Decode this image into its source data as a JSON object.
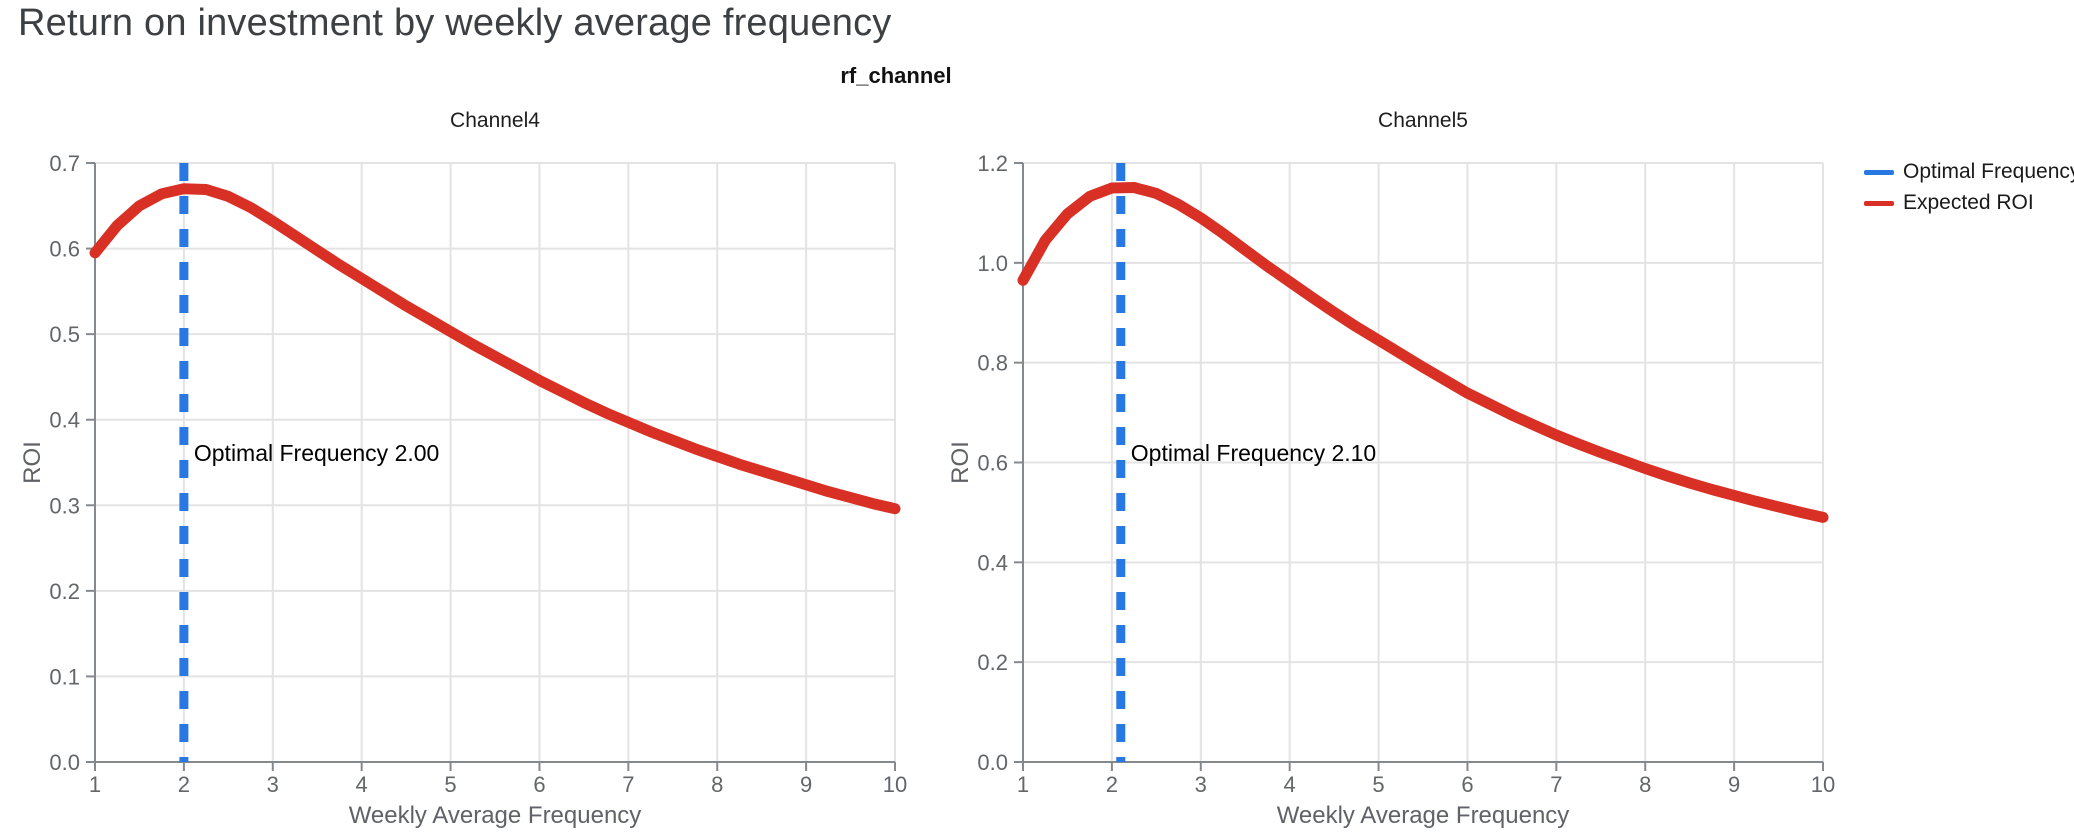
{
  "page": {
    "title": "Return on investment by weekly average frequency"
  },
  "figure": {
    "suptitle": "rf_channel"
  },
  "legend": {
    "position": "top-right",
    "items": [
      {
        "label": "Optimal Frequency",
        "color": "#2878e4"
      },
      {
        "label": "Expected ROI",
        "color": "#d93025"
      }
    ]
  },
  "colors": {
    "curve_red": "#d93025",
    "optimal_blue": "#2878e4",
    "gridline": "#e3e3e3",
    "axis_line": "#84898e",
    "tick_label": "#636669",
    "axis_title": "#5f6368",
    "chart_title": "#1d1d1f",
    "page_title": "#3c4043",
    "annotation_text": "#000000"
  },
  "chart_data": [
    {
      "type": "line",
      "title": "Channel4",
      "xlabel": "Weekly Average Frequency",
      "ylabel": "ROI",
      "xlim": [
        1,
        10
      ],
      "ylim": [
        0,
        0.7
      ],
      "grid": true,
      "xtick_values": [
        1,
        2,
        3,
        4,
        5,
        6,
        7,
        8,
        9,
        10
      ],
      "xtick_labels": [
        "1",
        "2",
        "3",
        "4",
        "5",
        "6",
        "7",
        "8",
        "9",
        "10"
      ],
      "ytick_values": [
        0.0,
        0.1,
        0.2,
        0.3,
        0.4,
        0.5,
        0.6,
        0.7
      ],
      "ytick_labels": [
        "0.0",
        "0.1",
        "0.2",
        "0.3",
        "0.4",
        "0.5",
        "0.6",
        "0.7"
      ],
      "optimal_frequency": 2.0,
      "annotation": {
        "label": "Optimal Frequency",
        "value": "2.00",
        "text": "Optimal Frequency  2.00"
      },
      "series": [
        {
          "name": "Expected ROI",
          "color": "#d93025",
          "x": [
            1,
            1.25,
            1.5,
            1.75,
            2,
            2.25,
            2.5,
            2.75,
            3,
            3.25,
            3.5,
            3.75,
            4,
            4.25,
            4.5,
            4.75,
            5,
            5.25,
            5.5,
            5.75,
            6,
            6.25,
            6.5,
            6.75,
            7,
            7.25,
            7.5,
            7.75,
            8,
            8.25,
            8.5,
            8.75,
            9,
            9.25,
            9.5,
            9.75,
            10
          ],
          "y": [
            0.595,
            0.627,
            0.65,
            0.664,
            0.67,
            0.669,
            0.661,
            0.648,
            0.632,
            0.615,
            0.598,
            0.581,
            0.565,
            0.549,
            0.533,
            0.518,
            0.503,
            0.488,
            0.474,
            0.46,
            0.446,
            0.433,
            0.42,
            0.408,
            0.397,
            0.386,
            0.376,
            0.366,
            0.357,
            0.348,
            0.34,
            0.332,
            0.324,
            0.316,
            0.309,
            0.302,
            0.296
          ]
        }
      ]
    },
    {
      "type": "line",
      "title": "Channel5",
      "xlabel": "Weekly Average Frequency",
      "ylabel": "ROI",
      "xlim": [
        1,
        10
      ],
      "ylim": [
        0,
        1.2
      ],
      "grid": true,
      "xtick_values": [
        1,
        2,
        3,
        4,
        5,
        6,
        7,
        8,
        9,
        10
      ],
      "xtick_labels": [
        "1",
        "2",
        "3",
        "4",
        "5",
        "6",
        "7",
        "8",
        "9",
        "10"
      ],
      "ytick_values": [
        0.0,
        0.2,
        0.4,
        0.6,
        0.8,
        1.0,
        1.2
      ],
      "ytick_labels": [
        "0.0",
        "0.2",
        "0.4",
        "0.6",
        "0.8",
        "1.0",
        "1.2"
      ],
      "optimal_frequency": 2.1,
      "annotation": {
        "label": "Optimal Frequency",
        "value": "2.10",
        "text": "Optimal Frequency  2.10"
      },
      "series": [
        {
          "name": "Expected ROI",
          "color": "#d93025",
          "x": [
            1,
            1.25,
            1.5,
            1.75,
            2,
            2.25,
            2.5,
            2.75,
            3,
            3.25,
            3.5,
            3.75,
            4,
            4.25,
            4.5,
            4.75,
            5,
            5.25,
            5.5,
            5.75,
            6,
            6.25,
            6.5,
            6.75,
            7,
            7.25,
            7.5,
            7.75,
            8,
            8.25,
            8.5,
            8.75,
            9,
            9.25,
            9.5,
            9.75,
            10
          ],
          "y": [
            0.965,
            1.045,
            1.098,
            1.133,
            1.15,
            1.151,
            1.139,
            1.117,
            1.09,
            1.059,
            1.026,
            0.993,
            0.962,
            0.931,
            0.901,
            0.872,
            0.845,
            0.818,
            0.791,
            0.765,
            0.739,
            0.717,
            0.695,
            0.675,
            0.655,
            0.637,
            0.62,
            0.604,
            0.588,
            0.573,
            0.559,
            0.546,
            0.534,
            0.522,
            0.511,
            0.5,
            0.49
          ]
        }
      ]
    }
  ]
}
